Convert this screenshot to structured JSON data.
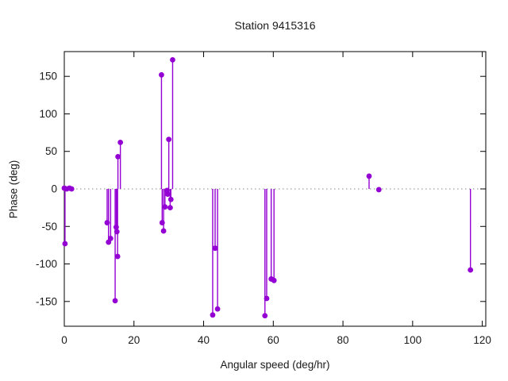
{
  "chart_data": {
    "type": "scatter",
    "style": "impulses+points",
    "title": "Station 9415316",
    "xlabel": "Angular speed (deg/hr)",
    "ylabel": "Phase (deg)",
    "xlim": [
      0,
      121
    ],
    "ylim": [
      -183,
      183
    ],
    "xticks": [
      0,
      20,
      40,
      60,
      80,
      100,
      120
    ],
    "yticks": [
      -150,
      -100,
      -50,
      0,
      50,
      100,
      150
    ],
    "grid": "zero-line-only",
    "legend_position": "none",
    "series_color": "#9400d3",
    "zero_line_color": "#8a8a8a",
    "axis_color": "#000000",
    "tick_label_color": "#1a1a1a",
    "points": [
      [
        0,
        1
      ],
      [
        0.2,
        -73
      ],
      [
        0.7,
        0
      ],
      [
        1.5,
        1
      ],
      [
        2.1,
        0
      ],
      [
        12.3,
        -45
      ],
      [
        12.7,
        -71
      ],
      [
        13.3,
        -66
      ],
      [
        14.6,
        -149
      ],
      [
        14.9,
        -51
      ],
      [
        15.1,
        -57
      ],
      [
        15.3,
        -90
      ],
      [
        15.4,
        43
      ],
      [
        16.1,
        62
      ],
      [
        27.9,
        152
      ],
      [
        28.1,
        -45
      ],
      [
        28.5,
        -56
      ],
      [
        28.9,
        -24
      ],
      [
        29.5,
        -2
      ],
      [
        29.7,
        -7
      ],
      [
        30.0,
        66
      ],
      [
        30.4,
        -25
      ],
      [
        30.6,
        -14
      ],
      [
        31.1,
        172
      ],
      [
        42.6,
        -168
      ],
      [
        43.3,
        -79
      ],
      [
        44.0,
        -160
      ],
      [
        57.6,
        -169
      ],
      [
        58.1,
        -146
      ],
      [
        59.4,
        -120
      ],
      [
        60.2,
        -122
      ],
      [
        87.5,
        17
      ],
      [
        90.3,
        -1
      ],
      [
        116.6,
        -108
      ]
    ]
  }
}
